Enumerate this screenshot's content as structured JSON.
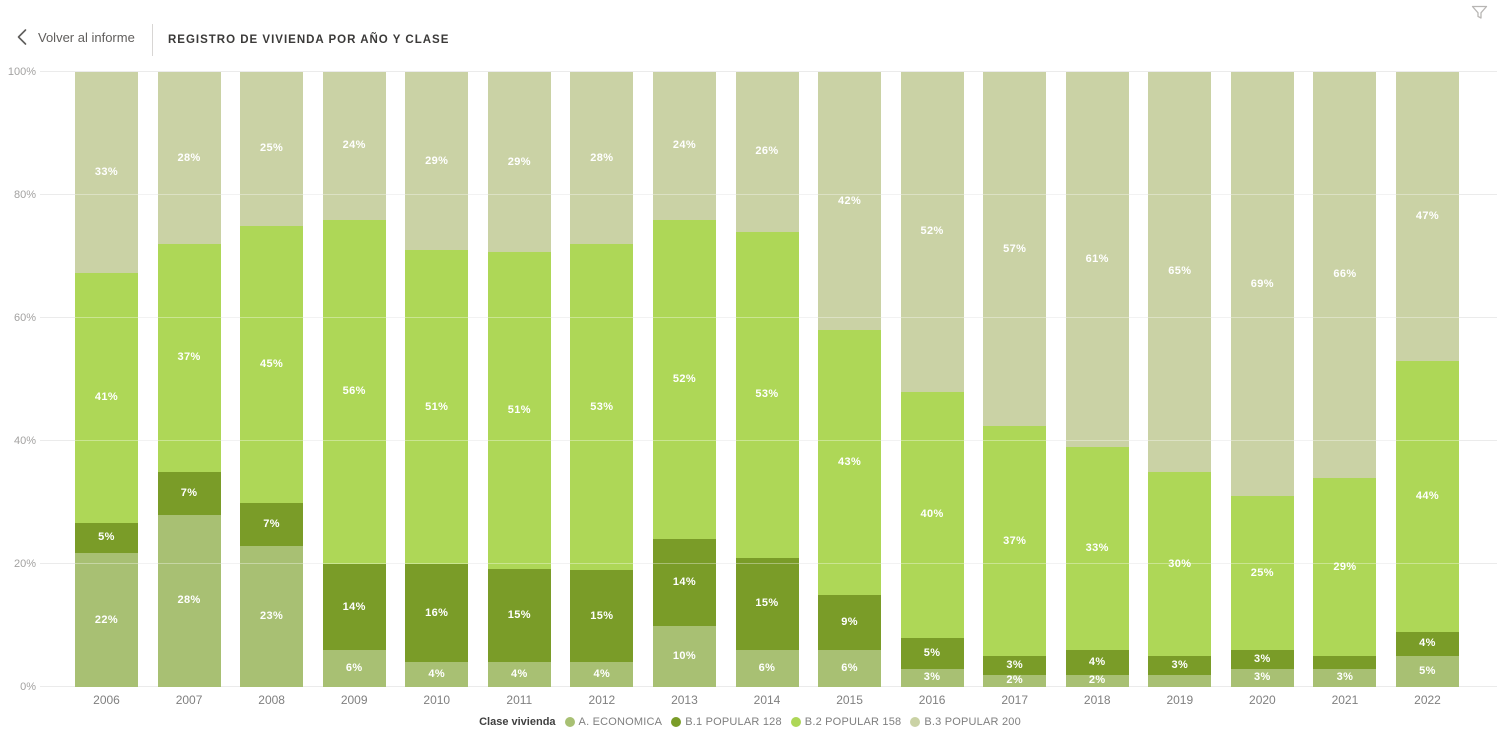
{
  "header": {
    "back_label": "Volver al informe",
    "title": "REGISTRO DE VIVIENDA POR AÑO Y CLASE",
    "icons": {
      "back": "chevron-left-icon",
      "filter": "funnel-icon"
    }
  },
  "colors": {
    "a_economica": "#a8c073",
    "b1_popular_128": "#7a9c28",
    "b2_popular_158": "#aed757",
    "b3_popular_200": "#cad2a5",
    "gridline": "#ebebeb",
    "axis_text": "#a3a2a1",
    "category_text": "#808080",
    "data_label": "#ffffff"
  },
  "chart_data": {
    "type": "bar",
    "stacked": true,
    "percent_stacked": true,
    "title": "REGISTRO DE VIVIENDA POR AÑO Y CLASE",
    "xlabel": "",
    "ylabel": "",
    "ylim": [
      0,
      100
    ],
    "y_ticks": [
      "0%",
      "20%",
      "40%",
      "60%",
      "80%",
      "100%"
    ],
    "grid": true,
    "legend_position": "bottom",
    "legend_title": "Clase vivienda",
    "categories": [
      "2006",
      "2007",
      "2008",
      "2009",
      "2010",
      "2011",
      "2012",
      "2013",
      "2014",
      "2015",
      "2016",
      "2017",
      "2018",
      "2019",
      "2020",
      "2021",
      "2022"
    ],
    "series": [
      {
        "name": "A. ECONOMICA",
        "color": "#a8c073",
        "values": [
          22,
          28,
          23,
          6,
          4,
          4,
          4,
          10,
          6,
          6,
          3,
          2,
          2,
          2,
          3,
          3,
          5
        ],
        "labels": [
          "22%",
          "28%",
          "23%",
          "6%",
          "4%",
          "4%",
          "4%",
          "10%",
          "6%",
          "6%",
          "3%",
          "2%",
          "2%",
          "",
          "3%",
          "3%",
          "5%"
        ]
      },
      {
        "name": "B.1 POPULAR 128",
        "color": "#7a9c28",
        "values": [
          5,
          7,
          7,
          14,
          16,
          15,
          15,
          14,
          15,
          9,
          5,
          3,
          4,
          3,
          3,
          2,
          4
        ],
        "labels": [
          "5%",
          "7%",
          "7%",
          "14%",
          "16%",
          "15%",
          "15%",
          "14%",
          "15%",
          "9%",
          "5%",
          "3%",
          "4%",
          "3%",
          "3%",
          "",
          "4%"
        ]
      },
      {
        "name": "B.2 POPULAR 158",
        "color": "#aed757",
        "values": [
          41,
          37,
          45,
          56,
          51,
          51,
          53,
          52,
          53,
          43,
          40,
          37,
          33,
          30,
          25,
          29,
          44
        ],
        "labels": [
          "41%",
          "37%",
          "45%",
          "56%",
          "51%",
          "51%",
          "53%",
          "52%",
          "53%",
          "43%",
          "40%",
          "37%",
          "33%",
          "30%",
          "25%",
          "29%",
          "44%"
        ]
      },
      {
        "name": "B.3 POPULAR 200",
        "color": "#cad2a5",
        "values": [
          33,
          28,
          25,
          24,
          29,
          29,
          28,
          24,
          26,
          42,
          52,
          57,
          61,
          65,
          69,
          66,
          47
        ],
        "labels": [
          "33%",
          "28%",
          "25%",
          "24%",
          "29%",
          "29%",
          "28%",
          "24%",
          "26%",
          "42%",
          "52%",
          "57%",
          "61%",
          "65%",
          "69%",
          "66%",
          "47%"
        ]
      }
    ]
  }
}
